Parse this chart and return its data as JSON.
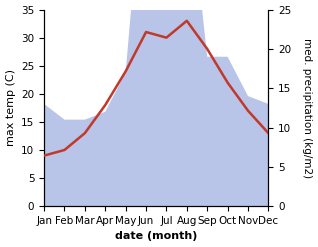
{
  "months": [
    "Jan",
    "Feb",
    "Mar",
    "Apr",
    "May",
    "Jun",
    "Jul",
    "Aug",
    "Sep",
    "Oct",
    "Nov",
    "Dec"
  ],
  "temp": [
    9,
    10,
    13,
    18,
    24,
    31,
    30,
    33,
    28,
    22,
    17,
    13
  ],
  "precip": [
    13,
    11,
    11,
    12,
    17,
    47,
    26,
    43,
    19,
    19,
    14,
    13
  ],
  "temp_color": "#c0392b",
  "precip_fill_color": "#b8c4e8",
  "ylim_temp": [
    0,
    35
  ],
  "ylim_precip": [
    0,
    25
  ],
  "yticks_temp": [
    0,
    5,
    10,
    15,
    20,
    25,
    30,
    35
  ],
  "yticks_precip": [
    0,
    5,
    10,
    15,
    20,
    25
  ],
  "xlabel": "date (month)",
  "ylabel_left": "max temp (C)",
  "ylabel_right": "med. precipitation (kg/m2)",
  "xlabel_fontsize": 8,
  "ylabel_fontsize": 8,
  "tick_fontsize": 7.5
}
